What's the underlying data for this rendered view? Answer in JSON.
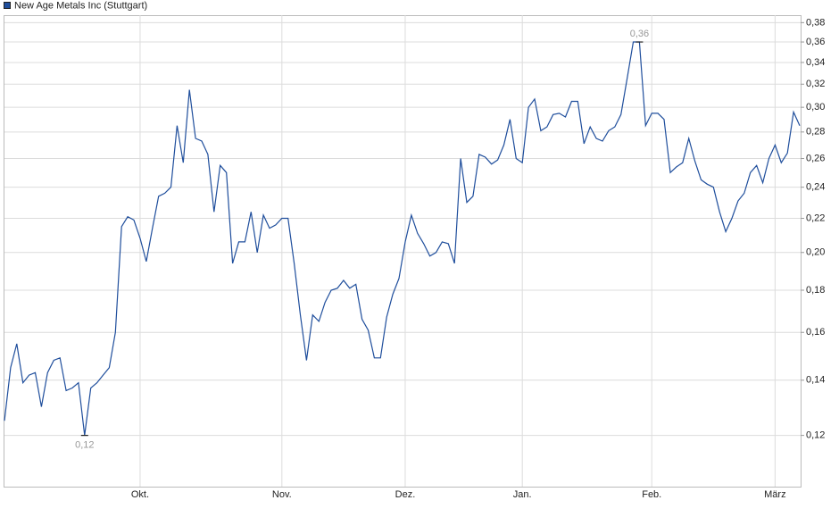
{
  "chart_data": {
    "type": "line",
    "log_scale": true,
    "grid": true,
    "legend": "top-left",
    "categories": [
      null,
      null,
      null,
      null,
      null,
      null,
      null,
      null,
      null,
      null,
      null,
      null,
      null,
      null,
      null,
      null,
      null,
      null,
      null,
      null,
      null,
      null,
      "Okt.",
      null,
      null,
      null,
      null,
      null,
      null,
      null,
      null,
      null,
      null,
      null,
      null,
      null,
      null,
      null,
      null,
      null,
      null,
      null,
      null,
      null,
      null,
      "Nov.",
      null,
      null,
      null,
      null,
      null,
      null,
      null,
      null,
      null,
      null,
      null,
      null,
      null,
      null,
      null,
      null,
      null,
      null,
      null,
      "Dez.",
      null,
      null,
      null,
      null,
      null,
      null,
      null,
      null,
      null,
      null,
      null,
      null,
      null,
      null,
      null,
      null,
      null,
      null,
      "Jan.",
      null,
      null,
      null,
      null,
      null,
      null,
      null,
      null,
      null,
      null,
      null,
      null,
      null,
      null,
      null,
      null,
      null,
      null,
      null,
      null,
      "Feb.",
      null,
      null,
      null,
      null,
      null,
      null,
      null,
      null,
      null,
      null,
      null,
      null,
      null,
      null,
      null,
      null,
      null,
      null,
      null,
      "März",
      null,
      null,
      null,
      null
    ],
    "series": [
      {
        "name": "New Age Metals Inc (Stuttgart)",
        "color": "#1f4e9c",
        "values": [
          0.125,
          0.145,
          0.155,
          0.139,
          0.142,
          0.143,
          0.13,
          0.143,
          0.148,
          0.149,
          0.136,
          0.137,
          0.139,
          0.12,
          0.137,
          0.139,
          0.142,
          0.145,
          0.16,
          0.215,
          0.221,
          0.219,
          0.208,
          0.195,
          0.214,
          0.234,
          0.236,
          0.24,
          0.285,
          0.257,
          0.315,
          0.275,
          0.273,
          0.263,
          0.224,
          0.255,
          0.25,
          0.194,
          0.206,
          0.206,
          0.224,
          0.2,
          0.222,
          0.214,
          0.216,
          0.22,
          0.22,
          0.194,
          0.168,
          0.148,
          0.168,
          0.165,
          0.174,
          0.18,
          0.181,
          0.185,
          0.181,
          0.183,
          0.166,
          0.161,
          0.149,
          0.149,
          0.167,
          0.178,
          0.186,
          0.206,
          0.222,
          0.211,
          0.205,
          0.198,
          0.2,
          0.206,
          0.205,
          0.194,
          0.26,
          0.23,
          0.234,
          0.263,
          0.261,
          0.256,
          0.259,
          0.27,
          0.29,
          0.26,
          0.257,
          0.3,
          0.307,
          0.281,
          0.284,
          0.294,
          0.295,
          0.292,
          0.305,
          0.305,
          0.271,
          0.284,
          0.275,
          0.273,
          0.281,
          0.284,
          0.294,
          0.325,
          0.36,
          0.36,
          0.285,
          0.295,
          0.295,
          0.29,
          0.25,
          0.254,
          0.257,
          0.275,
          0.258,
          0.245,
          0.242,
          0.24,
          0.224,
          0.212,
          0.22,
          0.231,
          0.236,
          0.25,
          0.255,
          0.243,
          0.26,
          0.27,
          0.257,
          0.264,
          0.296,
          0.285
        ],
        "value_labels": [
          null,
          null,
          null,
          null,
          null,
          null,
          null,
          null,
          null,
          null,
          null,
          null,
          null,
          "0,12",
          null,
          null,
          null,
          null,
          null,
          null,
          null,
          null,
          null,
          null,
          null,
          null,
          null,
          null,
          null,
          null,
          null,
          null,
          null,
          null,
          null,
          null,
          null,
          null,
          null,
          null,
          null,
          null,
          null,
          null,
          null,
          null,
          null,
          null,
          null,
          null,
          null,
          null,
          null,
          null,
          null,
          null,
          null,
          null,
          null,
          null,
          null,
          null,
          null,
          null,
          null,
          null,
          null,
          null,
          null,
          null,
          null,
          null,
          null,
          null,
          null,
          null,
          null,
          null,
          null,
          null,
          null,
          null,
          null,
          null,
          null,
          null,
          null,
          null,
          null,
          null,
          null,
          null,
          null,
          null,
          null,
          null,
          null,
          null,
          null,
          null,
          null,
          null,
          null,
          "0,36",
          null,
          null,
          null,
          null,
          null,
          null,
          null,
          null,
          null,
          null,
          null,
          null,
          null,
          null,
          null,
          null,
          null,
          null,
          null,
          null,
          null,
          null,
          null,
          null,
          null,
          null
        ]
      }
    ],
    "ylim": [
      0.104,
      0.388
    ],
    "yticks": [
      {
        "value": 0.12,
        "label": "0,12"
      },
      {
        "value": 0.14,
        "label": "0,14"
      },
      {
        "value": 0.16,
        "label": "0,16"
      },
      {
        "value": 0.18,
        "label": "0,18"
      },
      {
        "value": 0.2,
        "label": "0,20"
      },
      {
        "value": 0.22,
        "label": "0,22"
      },
      {
        "value": 0.24,
        "label": "0,24"
      },
      {
        "value": 0.26,
        "label": "0,26"
      },
      {
        "value": 0.28,
        "label": "0,28"
      },
      {
        "value": 0.3,
        "label": "0,30"
      },
      {
        "value": 0.32,
        "label": "0,32"
      },
      {
        "value": 0.34,
        "label": "0,34"
      },
      {
        "value": 0.36,
        "label": "0,36"
      },
      {
        "value": 0.38,
        "label": "0,38"
      }
    ]
  }
}
